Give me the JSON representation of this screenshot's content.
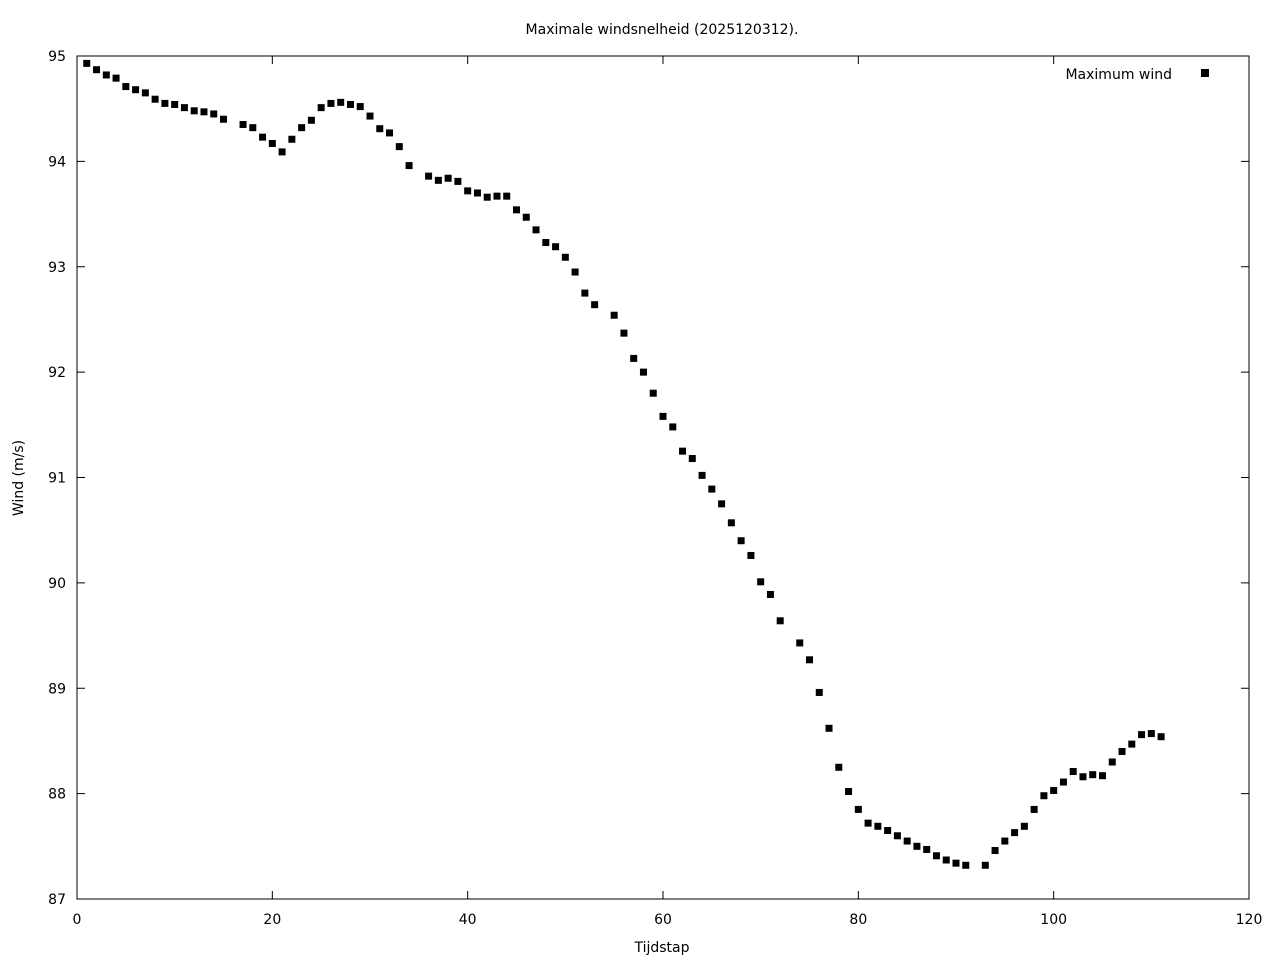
{
  "chart_data": {
    "type": "scatter",
    "title": "Maximale windsnelheid (2025120312).",
    "xlabel": "Tijdstap",
    "ylabel": "Wind (m/s)",
    "xlim": [
      0,
      120
    ],
    "ylim": [
      87,
      95
    ],
    "xticks": [
      0,
      20,
      40,
      60,
      80,
      100,
      120
    ],
    "yticks": [
      87,
      88,
      89,
      90,
      91,
      92,
      93,
      94,
      95
    ],
    "grid": false,
    "legend": {
      "position": "top-right"
    },
    "series": [
      {
        "name": "Maximum wind",
        "color": "#000000",
        "marker": "square",
        "x": [
          1,
          2,
          3,
          4,
          5,
          6,
          7,
          8,
          9,
          10,
          11,
          12,
          13,
          14,
          15,
          17,
          18,
          19,
          20,
          21,
          22,
          23,
          24,
          25,
          26,
          27,
          28,
          29,
          30,
          31,
          32,
          33,
          34,
          36,
          37,
          38,
          39,
          40,
          41,
          42,
          43,
          44,
          45,
          46,
          47,
          48,
          49,
          50,
          51,
          52,
          53,
          55,
          56,
          57,
          58,
          59,
          60,
          61,
          62,
          63,
          64,
          65,
          66,
          67,
          68,
          69,
          70,
          71,
          72,
          74,
          75,
          76,
          77,
          78,
          79,
          80,
          81,
          82,
          83,
          84,
          85,
          86,
          87,
          88,
          89,
          90,
          91,
          93,
          94,
          95,
          96,
          97,
          98,
          99,
          100,
          101,
          102,
          103,
          104,
          105,
          106,
          107,
          108,
          109,
          110,
          111
        ],
        "y": [
          94.93,
          94.87,
          94.82,
          94.79,
          94.71,
          94.68,
          94.65,
          94.59,
          94.55,
          94.54,
          94.51,
          94.48,
          94.47,
          94.45,
          94.4,
          94.35,
          94.32,
          94.23,
          94.17,
          94.09,
          94.21,
          94.32,
          94.39,
          94.51,
          94.55,
          94.56,
          94.54,
          94.52,
          94.43,
          94.31,
          94.27,
          94.14,
          93.96,
          93.86,
          93.82,
          93.84,
          93.81,
          93.72,
          93.7,
          93.66,
          93.67,
          93.67,
          93.54,
          93.47,
          93.35,
          93.23,
          93.19,
          93.09,
          92.95,
          92.75,
          92.64,
          92.54,
          92.37,
          92.13,
          92.0,
          91.8,
          91.58,
          91.48,
          91.25,
          91.18,
          91.02,
          90.89,
          90.75,
          90.57,
          90.4,
          90.26,
          90.01,
          89.89,
          89.64,
          89.43,
          89.27,
          88.96,
          88.62,
          88.25,
          88.02,
          87.85,
          87.72,
          87.69,
          87.65,
          87.6,
          87.55,
          87.5,
          87.47,
          87.41,
          87.37,
          87.34,
          87.32,
          87.32,
          87.46,
          87.55,
          87.63,
          87.69,
          87.85,
          87.98,
          88.03,
          88.11,
          88.21,
          88.16,
          88.18,
          88.17,
          88.3,
          88.4,
          88.47,
          88.56,
          88.57,
          88.54
        ]
      }
    ]
  }
}
